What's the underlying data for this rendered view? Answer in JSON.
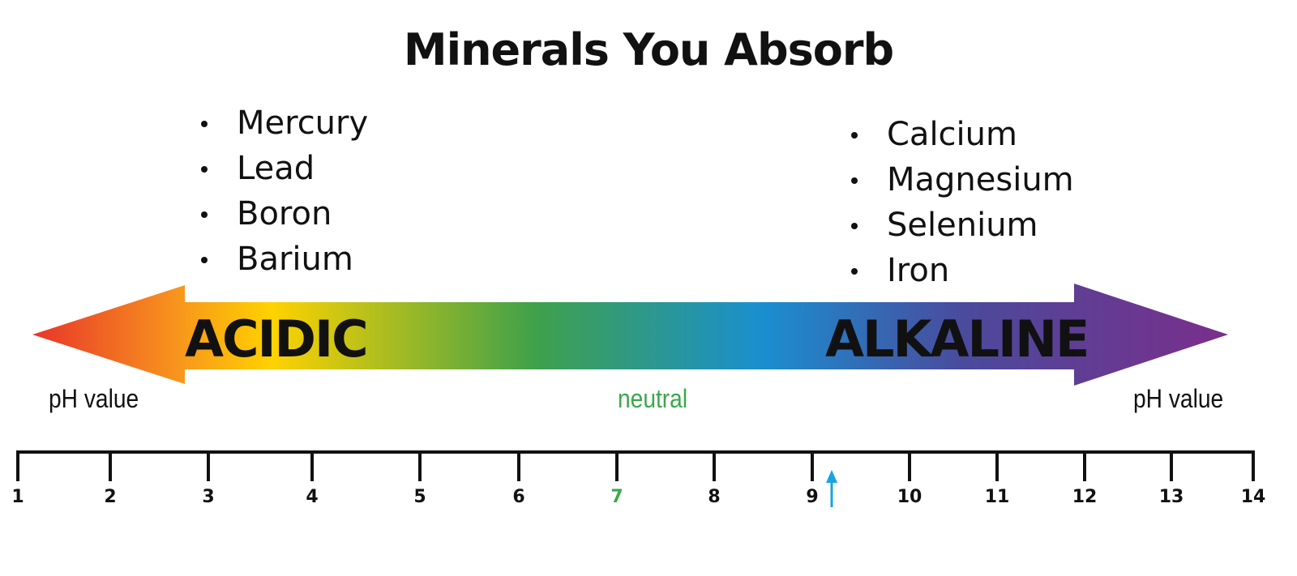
{
  "title": "Minerals You Absorb",
  "acidic": {
    "label": "ACIDIC",
    "minerals": [
      "Mercury",
      "Lead",
      "Boron",
      "Barium"
    ]
  },
  "alkaline": {
    "label": "ALKALINE",
    "minerals": [
      "Calcium",
      "Magnesium",
      "Selenium",
      "Iron"
    ]
  },
  "ph_label_left": "pH value",
  "ph_label_right": "pH value",
  "neutral_label": "neutral",
  "scale": {
    "ticks": [
      "1",
      "2",
      "3",
      "4",
      "5",
      "6",
      "7",
      "8",
      "9",
      "10",
      "11",
      "12",
      "13",
      "14"
    ],
    "neutral_tick": "7",
    "marker_value": 9.2
  },
  "colors": {
    "red": "#e8352a",
    "orange": "#f7941d",
    "yellow": "#ffd200",
    "green": "#3fa14a",
    "blue": "#1a8fd0",
    "indigo": "#4b4a9c",
    "purple": "#7a2e8a",
    "neutral_text": "#3aa84a",
    "marker": "#1aa3e0"
  }
}
